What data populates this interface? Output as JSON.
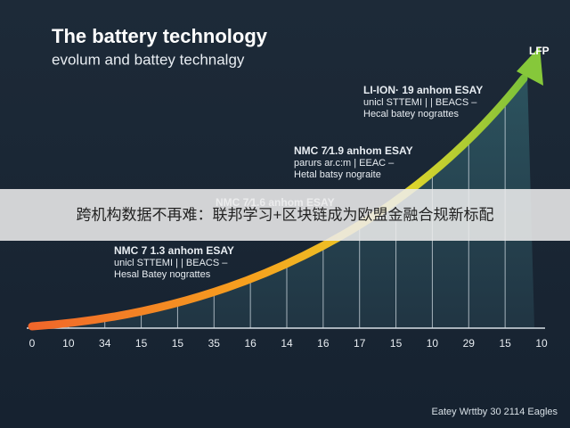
{
  "header": {
    "title": "The battery technology",
    "subtitle": "evolum and battey technalgy"
  },
  "end_label": "LFP",
  "annotations": [
    {
      "lines": [
        "LI-ION· 19 anhom ESAY",
        "unicl STTEMI | | BEACS –",
        "Hecal batey nograttes"
      ]
    },
    {
      "lines": [
        "NMC 7⁄1.9 anhom ESAY",
        "parurs ar.c:m | EEAC –",
        "Hetal batsy nograite"
      ]
    },
    {
      "lines": [
        "NMC 7⁄1.6 anhom ESAY"
      ]
    },
    {
      "lines": [
        "NMC 7 1.3 anhom ESAY",
        "unicl STTEMI | | BEACS –",
        "Hesal Batey nograttes"
      ]
    }
  ],
  "axis_labels": [
    "0",
    "10",
    "34",
    "15",
    "15",
    "35",
    "16",
    "14",
    "16",
    "17",
    "15",
    "10",
    "29",
    "15",
    "10"
  ],
  "footer": "Eatey Wrttby 30 2114 Eagles",
  "banner": "跨机构数据不再难：联邦学习+区块链成为欧盟金融合规新标配"
}
